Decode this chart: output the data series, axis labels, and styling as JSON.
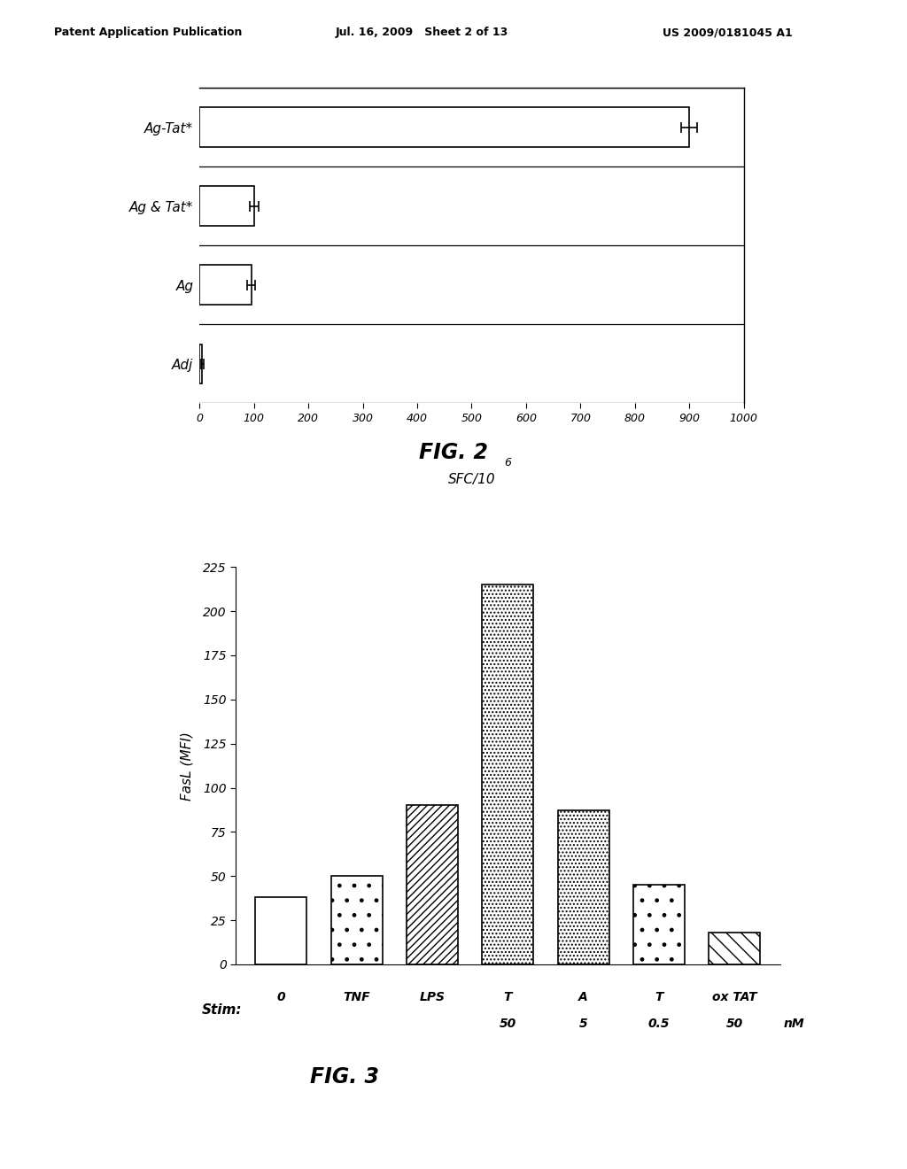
{
  "fig2": {
    "categories": [
      "Ag-Tat*",
      "Ag & Tat*",
      "Ag",
      "Adj"
    ],
    "values": [
      900,
      100,
      95,
      5
    ],
    "errors": [
      15,
      8,
      7,
      3
    ],
    "xlim": [
      0,
      1000
    ],
    "xticks": [
      0,
      100,
      200,
      300,
      400,
      500,
      600,
      700,
      800,
      900,
      1000
    ],
    "xlabel": "SFC/10",
    "xlabel_super": "6",
    "title": "FIG. 2"
  },
  "fig3": {
    "categories": [
      "0",
      "TNF",
      "LPS",
      "T",
      "A",
      "T",
      "ox TAT"
    ],
    "subcategories": [
      "",
      "",
      "",
      "50",
      "5",
      "0.5",
      "50"
    ],
    "nm_label": "nM",
    "values": [
      38,
      50,
      90,
      215,
      87,
      45,
      18
    ],
    "ylim": [
      0,
      225
    ],
    "yticks": [
      0,
      25,
      50,
      75,
      100,
      125,
      150,
      175,
      200,
      225
    ],
    "ylabel": "FasL (MFI)",
    "xlabel": "Stim:",
    "title": "FIG. 3"
  },
  "header_left": "Patent Application Publication",
  "header_mid": "Jul. 16, 2009   Sheet 2 of 13",
  "header_right": "US 2009/0181045 A1",
  "bg_color": "#ffffff",
  "text_color": "#000000"
}
